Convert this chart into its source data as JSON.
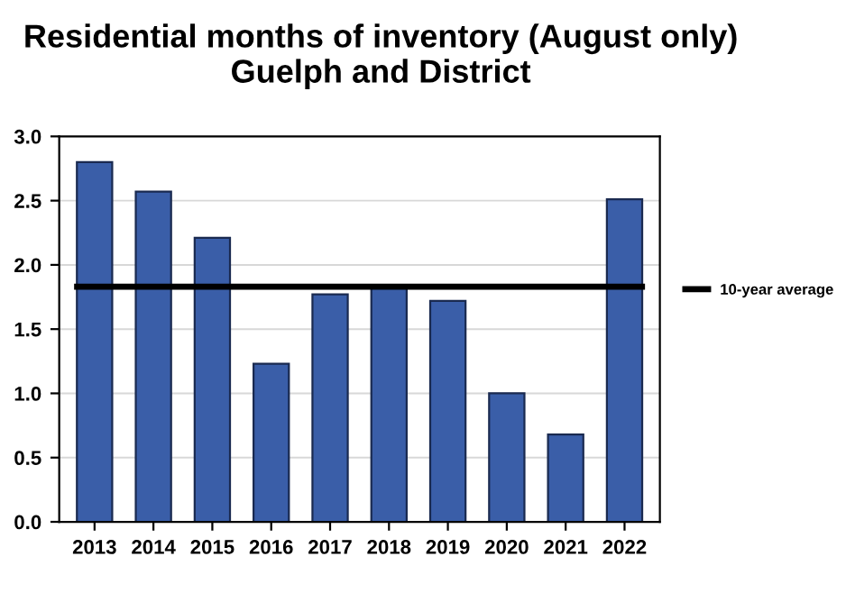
{
  "chart_data": {
    "type": "bar",
    "title": "Residential months of inventory (August only)\nGuelph and District",
    "categories": [
      "2013",
      "2014",
      "2015",
      "2016",
      "2017",
      "2018",
      "2019",
      "2020",
      "2021",
      "2022"
    ],
    "values": [
      2.8,
      2.57,
      2.21,
      1.23,
      1.77,
      1.82,
      1.72,
      1.0,
      0.68,
      2.51
    ],
    "color": "#3a5ea8",
    "ylim": [
      0,
      3.0
    ],
    "yticks": [
      {
        "value": 0,
        "label": "0.0"
      },
      {
        "value": 0.5,
        "label": "0.5"
      },
      {
        "value": 1.0,
        "label": "1.0"
      },
      {
        "value": 1.5,
        "label": "1.5"
      },
      {
        "value": 2.0,
        "label": "2.0"
      },
      {
        "value": 2.5,
        "label": "2.5"
      },
      {
        "value": 3.0,
        "label": "3.0"
      }
    ],
    "grid": "y",
    "legend": "right",
    "ref_lines": [
      {
        "axis": "y",
        "value": 1.83,
        "label": "10-year average",
        "color": "#000000",
        "line_style": "solid"
      }
    ]
  }
}
